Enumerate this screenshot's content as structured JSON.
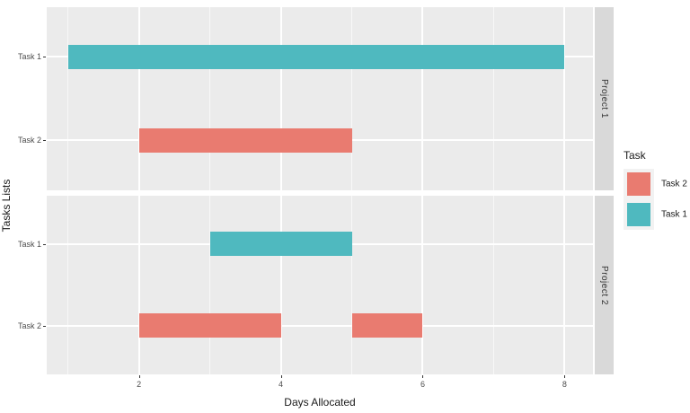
{
  "chart_data": {
    "type": "bar",
    "subtype": "gantt-faceted",
    "title": "",
    "xlabel": "Days Allocated",
    "ylabel": "Tasks Lists",
    "x_ticks": [
      2,
      4,
      6,
      8
    ],
    "x_minor_gridlines": [
      1,
      3,
      5,
      7
    ],
    "xlim": [
      0.7,
      8.4
    ],
    "y_categories": [
      "Task 1",
      "Task 2"
    ],
    "colors": {
      "Task 1": "#4FB9BF",
      "Task 2": "#E97B70"
    },
    "panel_background": "#EBEBEB",
    "strip_background": "#D9D9D9",
    "facets": [
      {
        "label": "Project 1",
        "bars": [
          {
            "task": "Task 1",
            "start": 1,
            "end": 8
          },
          {
            "task": "Task 2",
            "start": 2,
            "end": 5
          }
        ]
      },
      {
        "label": "Project 2",
        "bars": [
          {
            "task": "Task 1",
            "start": 3,
            "end": 5
          },
          {
            "task": "Task 2",
            "start": 2,
            "end": 4
          },
          {
            "task": "Task 2",
            "start": 5,
            "end": 6
          }
        ]
      }
    ],
    "legend": {
      "title": "Task",
      "position": "right",
      "entries": [
        {
          "label": "Task 2",
          "color": "#E97B70"
        },
        {
          "label": "Task 1",
          "color": "#4FB9BF"
        }
      ]
    }
  }
}
